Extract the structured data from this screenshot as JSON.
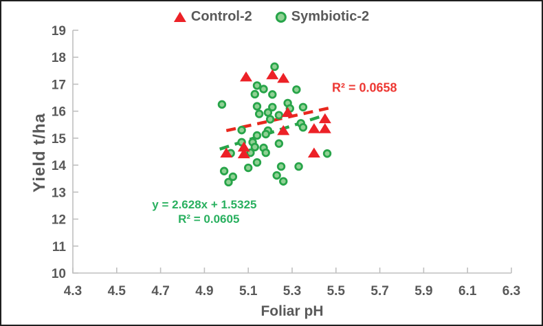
{
  "chart_data": {
    "type": "scatter",
    "title": "",
    "xlabel": "Foliar pH",
    "ylabel": "Yield t/ha",
    "xlim": [
      4.3,
      6.3
    ],
    "ylim": [
      10,
      19
    ],
    "xticks": [
      "4.3",
      "4.5",
      "4.7",
      "4.9",
      "5.1",
      "5.3",
      "5.5",
      "5.7",
      "5.9",
      "6.1",
      "6.3"
    ],
    "yticks": [
      "10",
      "11",
      "12",
      "13",
      "14",
      "15",
      "16",
      "17",
      "18",
      "19"
    ],
    "grid": false,
    "legend_position": "top-center",
    "axis_color": "#bfbfbf",
    "tick_label_color": "#595959",
    "series": [
      {
        "name": "Control-2",
        "marker": "triangle",
        "color": "#ec2127",
        "points": [
          [
            5.09,
            17.27
          ],
          [
            5.21,
            17.35
          ],
          [
            5.26,
            17.22
          ],
          [
            5.28,
            15.95
          ],
          [
            5.45,
            15.72
          ],
          [
            5.4,
            15.35
          ],
          [
            5.45,
            15.35
          ],
          [
            5.26,
            15.28
          ],
          [
            5.0,
            14.45
          ],
          [
            5.08,
            14.67
          ],
          [
            5.08,
            14.42
          ],
          [
            5.4,
            14.45
          ]
        ],
        "trendline": {
          "style": "dashed",
          "color": "#e8281e",
          "x_start": 5.0,
          "y_start": 15.28,
          "x_end": 5.47,
          "y_end": 16.12
        },
        "r2_label": "R² = 0.0658"
      },
      {
        "name": "Symbiotic-2",
        "marker": "circle",
        "fill": "#8fd193",
        "stroke": "#27a449",
        "points": [
          [
            5.22,
            17.65
          ],
          [
            5.14,
            16.95
          ],
          [
            5.17,
            16.82
          ],
          [
            5.13,
            16.63
          ],
          [
            5.21,
            16.62
          ],
          [
            5.32,
            16.8
          ],
          [
            4.98,
            16.25
          ],
          [
            5.14,
            16.18
          ],
          [
            5.21,
            16.15
          ],
          [
            5.28,
            16.3
          ],
          [
            5.29,
            16.1
          ],
          [
            5.35,
            16.15
          ],
          [
            5.15,
            15.9
          ],
          [
            5.19,
            15.95
          ],
          [
            5.24,
            15.85
          ],
          [
            5.2,
            15.7
          ],
          [
            5.34,
            15.55
          ],
          [
            5.35,
            15.4
          ],
          [
            5.07,
            15.3
          ],
          [
            5.19,
            15.28
          ],
          [
            5.14,
            15.1
          ],
          [
            5.18,
            15.15
          ],
          [
            5.07,
            14.85
          ],
          [
            5.12,
            14.85
          ],
          [
            5.24,
            14.8
          ],
          [
            5.13,
            14.67
          ],
          [
            5.17,
            14.64
          ],
          [
            5.11,
            14.46
          ],
          [
            5.18,
            14.46
          ],
          [
            5.02,
            14.44
          ],
          [
            5.14,
            14.1
          ],
          [
            5.1,
            13.9
          ],
          [
            5.33,
            13.95
          ],
          [
            5.25,
            13.95
          ],
          [
            4.99,
            13.78
          ],
          [
            5.03,
            13.57
          ],
          [
            5.01,
            13.37
          ],
          [
            5.23,
            13.62
          ],
          [
            5.26,
            13.4
          ],
          [
            5.46,
            14.43
          ]
        ],
        "trendline": {
          "style": "dashed",
          "color": "#27a449",
          "equation": "y = 2.628x + 1.5325",
          "slope": 2.628,
          "intercept": 1.5325,
          "x_start": 4.97,
          "x_end": 5.45
        },
        "r2_label": "R² = 0.0605"
      }
    ],
    "annotations": [
      {
        "id": "control-r2",
        "text": "R² = 0.0658",
        "color": "#ed3833",
        "x": 5.63,
        "y": 16.85
      },
      {
        "id": "symbiotic-equation",
        "text": "y = 2.628x + 1.5325",
        "color": "#29b05f",
        "x": 4.9,
        "y": 12.53
      },
      {
        "id": "symbiotic-r2",
        "text": "R² = 0.0605",
        "color": "#29b05f",
        "x": 4.92,
        "y": 11.99
      }
    ]
  }
}
